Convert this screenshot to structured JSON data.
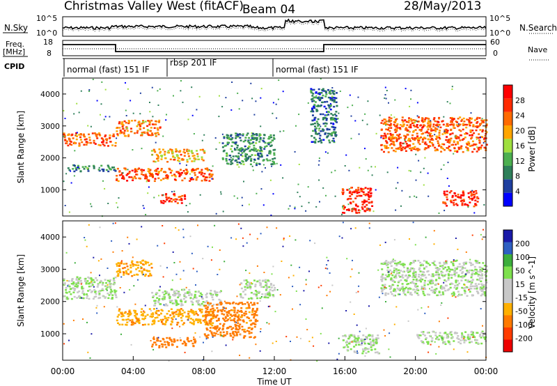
{
  "header": {
    "station": "Christmas Valley West (fitACF)",
    "beam": "Beam 04",
    "date": "28/May/2013"
  },
  "noise_panel": {
    "left_label": "N.Sky",
    "right_label": "N.Search",
    "left_ticks": [
      "10^5",
      "10^0"
    ],
    "right_ticks": [
      "10^5",
      "10^0"
    ]
  },
  "freq_panel": {
    "left_label_1": "Freq.",
    "left_label_2": "[MHz]",
    "right_label": "Nave",
    "left_ticks": [
      "18",
      "8"
    ],
    "right_ticks": [
      "60",
      "0"
    ]
  },
  "cpid": {
    "label": "CPID",
    "segments": [
      "normal (fast) 151 IF",
      "rbsp 201 IF",
      "normal (fast) 151 IF"
    ]
  },
  "colors": {
    "power_scale": [
      "#0000ff",
      "#1f3f9f",
      "#2e7f5a",
      "#4caf50",
      "#9fdf3f",
      "#ffa500",
      "#ff6a00",
      "#ff2a00",
      "#ff0000"
    ],
    "velocity_scale": [
      "#1a1aa8",
      "#2e5fc2",
      "#3cae3c",
      "#7ee04e",
      "#c8c8c8",
      "#c8c8c8",
      "#ffb000",
      "#ff7a00",
      "#ff3c00",
      "#ee0000"
    ]
  },
  "chart_data": [
    {
      "type": "heatmap",
      "title": "Power",
      "ylabel": "Slant Range [km]",
      "yticks": [
        "1000",
        "2000",
        "3000",
        "4000"
      ],
      "colorbar_label": "Power [dB]",
      "colorbar_ticks": [
        "4",
        "8",
        "12",
        "16",
        "20",
        "24",
        "28"
      ],
      "xlim_hours": [
        0,
        24
      ],
      "ylim_km": [
        180,
        4500
      ],
      "bands": [
        {
          "t": [
            0.0,
            3.0
          ],
          "r": [
            2400,
            2800
          ],
          "value": 24
        },
        {
          "t": [
            0.2,
            3.0
          ],
          "r": [
            1600,
            1800
          ],
          "value": 10
        },
        {
          "t": [
            3.0,
            5.5
          ],
          "r": [
            2700,
            3200
          ],
          "value": 22
        },
        {
          "t": [
            3.0,
            8.5
          ],
          "r": [
            1300,
            1700
          ],
          "value": 25
        },
        {
          "t": [
            5.0,
            8.0
          ],
          "r": [
            1900,
            2300
          ],
          "value": 20
        },
        {
          "t": [
            5.5,
            7.0
          ],
          "r": [
            600,
            900
          ],
          "value": 26
        },
        {
          "t": [
            9.0,
            12.0
          ],
          "r": [
            1800,
            2800
          ],
          "value": 10
        },
        {
          "t": [
            14.0,
            15.5
          ],
          "r": [
            2500,
            4200
          ],
          "value": 8
        },
        {
          "t": [
            15.8,
            17.5
          ],
          "r": [
            300,
            1100
          ],
          "value": 28
        },
        {
          "t": [
            18.0,
            24.0
          ],
          "r": [
            2200,
            3300
          ],
          "value": 24
        },
        {
          "t": [
            21.5,
            23.5
          ],
          "r": [
            500,
            1000
          ],
          "value": 28
        }
      ]
    },
    {
      "type": "heatmap",
      "title": "Velocity",
      "xlabel": "Time UT",
      "ylabel": "Slant Range [km]",
      "xticks": [
        "00:00",
        "04:00",
        "08:00",
        "12:00",
        "16:00",
        "20:00",
        "00:00"
      ],
      "yticks": [
        "1000",
        "2000",
        "3000",
        "4000"
      ],
      "colorbar_label": "Velocity [m s^-1]",
      "colorbar_ticks": [
        "200",
        "100",
        "50",
        "15",
        "-15",
        "-50",
        "-100",
        "-200"
      ],
      "xlim_hours": [
        0,
        24
      ],
      "ylim_km": [
        180,
        4500
      ],
      "bands": [
        {
          "t": [
            0.0,
            3.0
          ],
          "r": [
            2100,
            2800
          ],
          "value": 0
        },
        {
          "t": [
            3.0,
            5.0
          ],
          "r": [
            2800,
            3300
          ],
          "value": -60
        },
        {
          "t": [
            3.0,
            8.5
          ],
          "r": [
            1300,
            1800
          ],
          "value": -60
        },
        {
          "t": [
            5.0,
            9.0
          ],
          "r": [
            1900,
            2400
          ],
          "value": 0
        },
        {
          "t": [
            5.0,
            7.5
          ],
          "r": [
            600,
            900
          ],
          "value": -120
        },
        {
          "t": [
            8.0,
            11.0
          ],
          "r": [
            900,
            2000
          ],
          "value": -100
        },
        {
          "t": [
            10.0,
            12.0
          ],
          "r": [
            2100,
            2700
          ],
          "value": 0
        },
        {
          "t": [
            15.8,
            18.0
          ],
          "r": [
            400,
            1000
          ],
          "value": 0
        },
        {
          "t": [
            18.0,
            24.0
          ],
          "r": [
            2200,
            3300
          ],
          "value": 0
        },
        {
          "t": [
            20.0,
            24.0
          ],
          "r": [
            700,
            1100
          ],
          "value": 0
        }
      ]
    }
  ]
}
